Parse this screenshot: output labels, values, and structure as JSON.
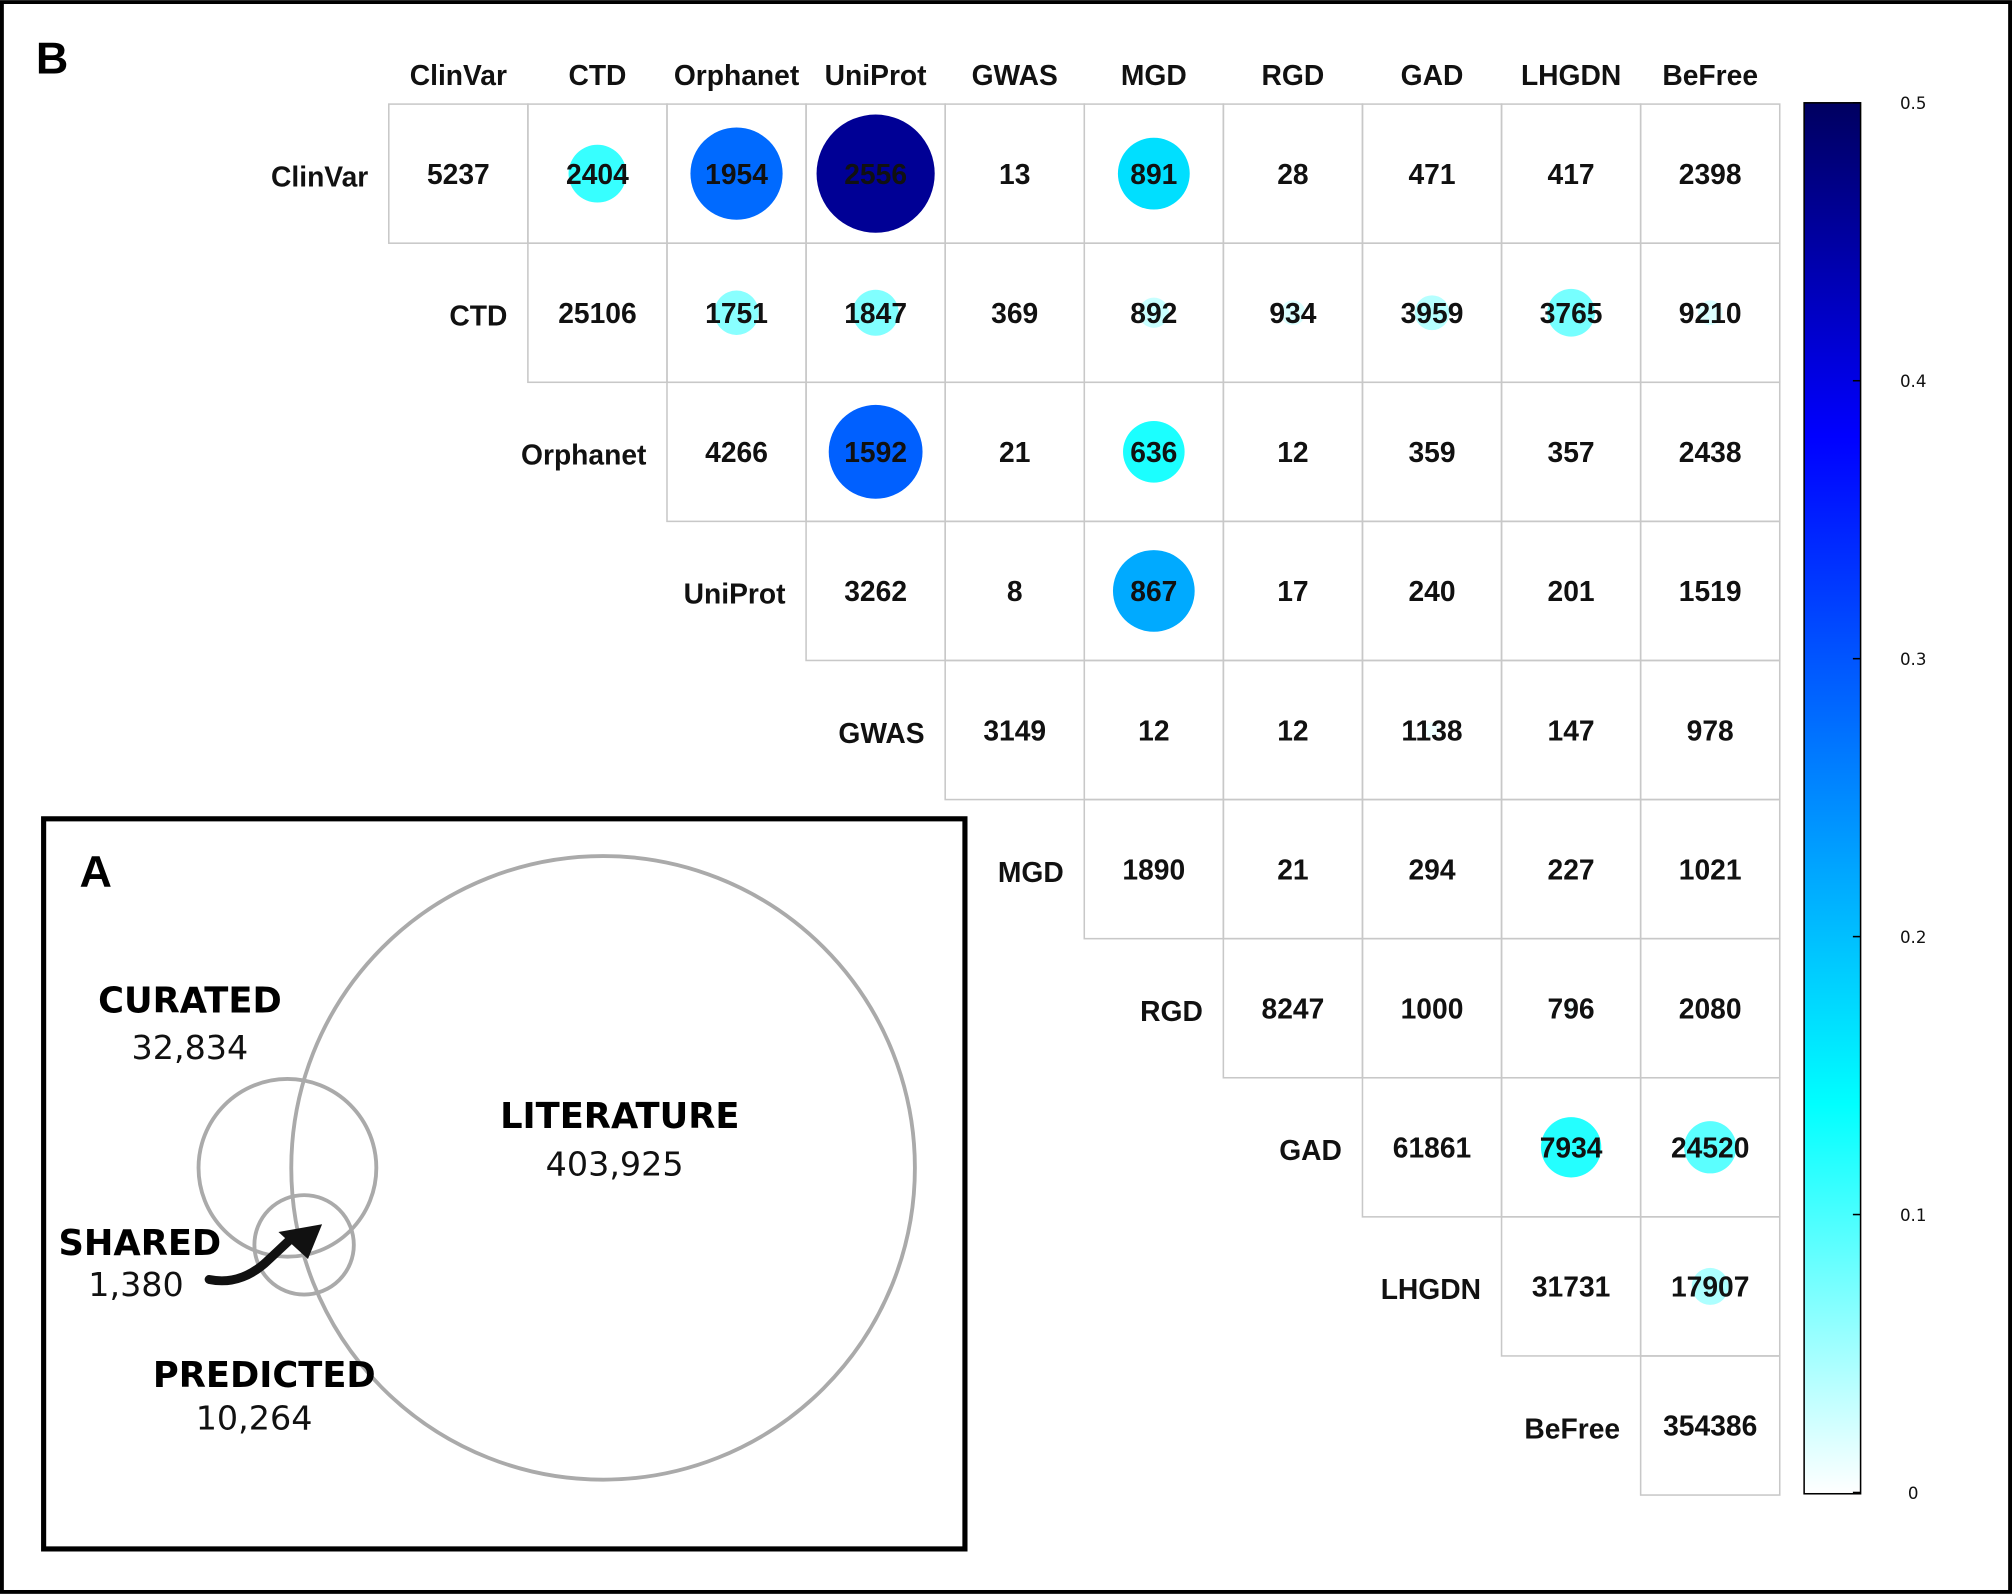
{
  "chart_data": [
    {
      "type": "heatmap",
      "panel": "B",
      "sources": [
        "ClinVar",
        "CTD",
        "Orphanet",
        "UniProt",
        "GWAS",
        "MGD",
        "RGD",
        "GAD",
        "LHGDN",
        "BeFree"
      ],
      "counts": [
        [
          5237,
          2404,
          1954,
          2556,
          13,
          891,
          28,
          471,
          417,
          2398
        ],
        [
          25106,
          1751,
          1847,
          369,
          892,
          934,
          3959,
          3765,
          9210
        ],
        [
          4266,
          1592,
          21,
          636,
          12,
          359,
          357,
          2438
        ],
        [
          3262,
          8,
          867,
          17,
          240,
          201,
          1519
        ],
        [
          3149,
          12,
          12,
          1138,
          147,
          978
        ],
        [
          1890,
          21,
          294,
          227,
          1021
        ],
        [
          8247,
          1000,
          796,
          2080
        ],
        [
          61861,
          7934,
          24520
        ],
        [
          31731,
          17907
        ],
        [
          354386
        ]
      ],
      "circles": [
        {
          "row": 0,
          "col": 1,
          "value": 0.11
        },
        {
          "row": 0,
          "col": 2,
          "value": 0.28
        },
        {
          "row": 0,
          "col": 3,
          "value": 0.46
        },
        {
          "row": 0,
          "col": 5,
          "value": 0.17
        },
        {
          "row": 1,
          "col": 2,
          "value": 0.065
        },
        {
          "row": 1,
          "col": 3,
          "value": 0.07
        },
        {
          "row": 1,
          "col": 5,
          "value": 0.03
        },
        {
          "row": 1,
          "col": 6,
          "value": 0.02
        },
        {
          "row": 1,
          "col": 7,
          "value": 0.04
        },
        {
          "row": 1,
          "col": 8,
          "value": 0.075
        },
        {
          "row": 1,
          "col": 9,
          "value": 0.02
        },
        {
          "row": 2,
          "col": 3,
          "value": 0.29
        },
        {
          "row": 2,
          "col": 5,
          "value": 0.125
        },
        {
          "row": 3,
          "col": 5,
          "value": 0.22
        },
        {
          "row": 4,
          "col": 7,
          "value": 0.008
        },
        {
          "row": 6,
          "col": 8,
          "value": 0.006
        },
        {
          "row": 7,
          "col": 8,
          "value": 0.12
        },
        {
          "row": 7,
          "col": 9,
          "value": 0.09
        },
        {
          "row": 8,
          "col": 9,
          "value": 0.045
        }
      ],
      "colorbar": {
        "range": [
          0,
          0.5
        ],
        "ticks": [
          0,
          0.1,
          0.2,
          0.3,
          0.4,
          0.5
        ],
        "stops": [
          {
            "value": 0,
            "color": "#ffffff"
          },
          {
            "value": 0.14,
            "color": "#00ffff"
          },
          {
            "value": 0.38,
            "color": "#0000ff"
          },
          {
            "value": 0.5,
            "color": "#000060"
          }
        ]
      }
    },
    {
      "type": "venn",
      "panel": "A",
      "sets": [
        {
          "label": "CURATED",
          "value": "32,834"
        },
        {
          "label": "LITERATURE",
          "value": "403,925"
        },
        {
          "label": "PREDICTED",
          "value": "10,264"
        }
      ],
      "shared": {
        "label": "SHARED",
        "value": "1,380"
      }
    }
  ],
  "colors": {
    "grid": "#c8c8c8",
    "venn_stroke": "#aaaaaa",
    "frame": "#000000",
    "text": "#111111"
  }
}
